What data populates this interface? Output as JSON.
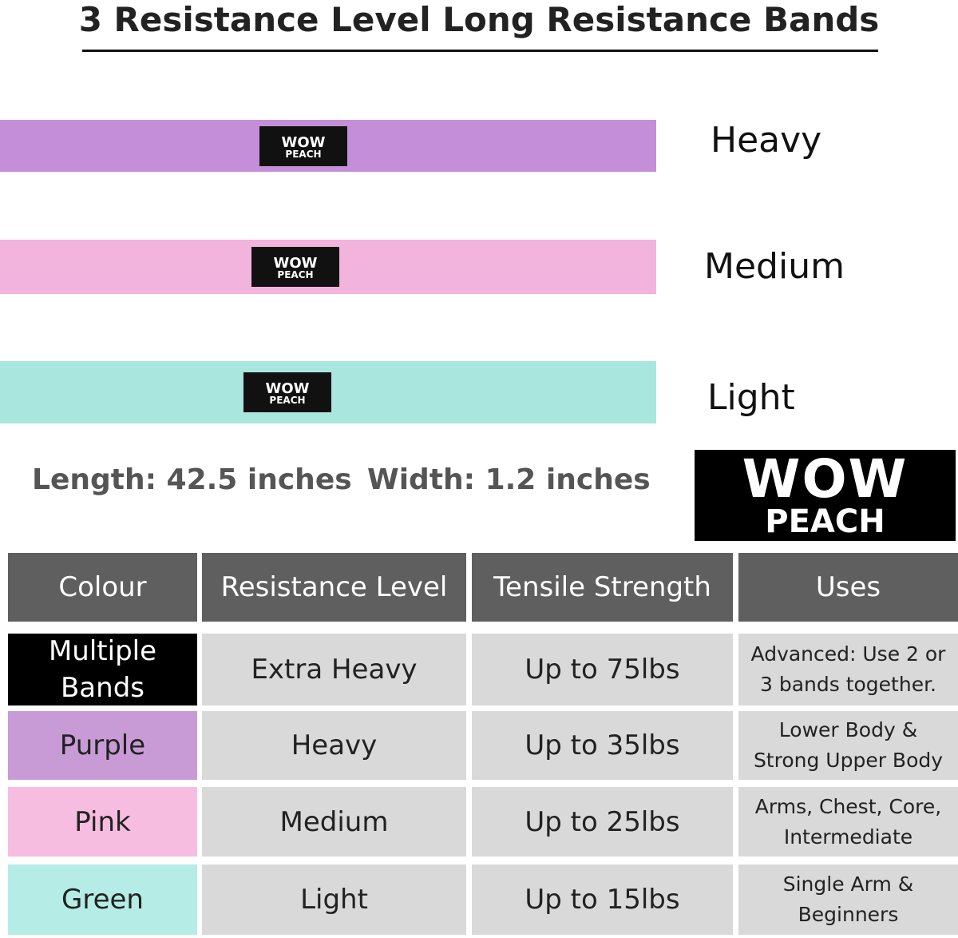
{
  "title": "3 Resistance Level Long Resistance Bands",
  "brand": {
    "line1": "WOW",
    "line2": "PEACH"
  },
  "bands": [
    {
      "label": "Heavy",
      "color": "#c58ed9"
    },
    {
      "label": "Medium",
      "color": "#f2b3dc"
    },
    {
      "label": "Light",
      "color": "#a9e6dd"
    }
  ],
  "dimensions": {
    "length": "Length: 42.5 inches",
    "width": "Width: 1.2 inches"
  },
  "table": {
    "header": [
      "Colour",
      "Resistance Level",
      "Tensile Strength",
      "Uses"
    ],
    "rows": [
      [
        "Multiple Bands",
        "Extra Heavy",
        "Up to 75lbs",
        "Advanced: Use 2 or 3 bands together."
      ],
      [
        "Purple",
        "Heavy",
        "Up to 35lbs",
        "Lower Body & Strong Upper Body"
      ],
      [
        "Pink",
        "Medium",
        "Up to 25lbs",
        "Arms, Chest, Core, Intermediate"
      ],
      [
        "Green",
        "Light",
        "Up to 15lbs",
        "Single Arm & Beginners"
      ]
    ],
    "row_colors": [
      "#000000",
      "#c89bd6",
      "#f6bde0",
      "#b5ece6"
    ]
  }
}
